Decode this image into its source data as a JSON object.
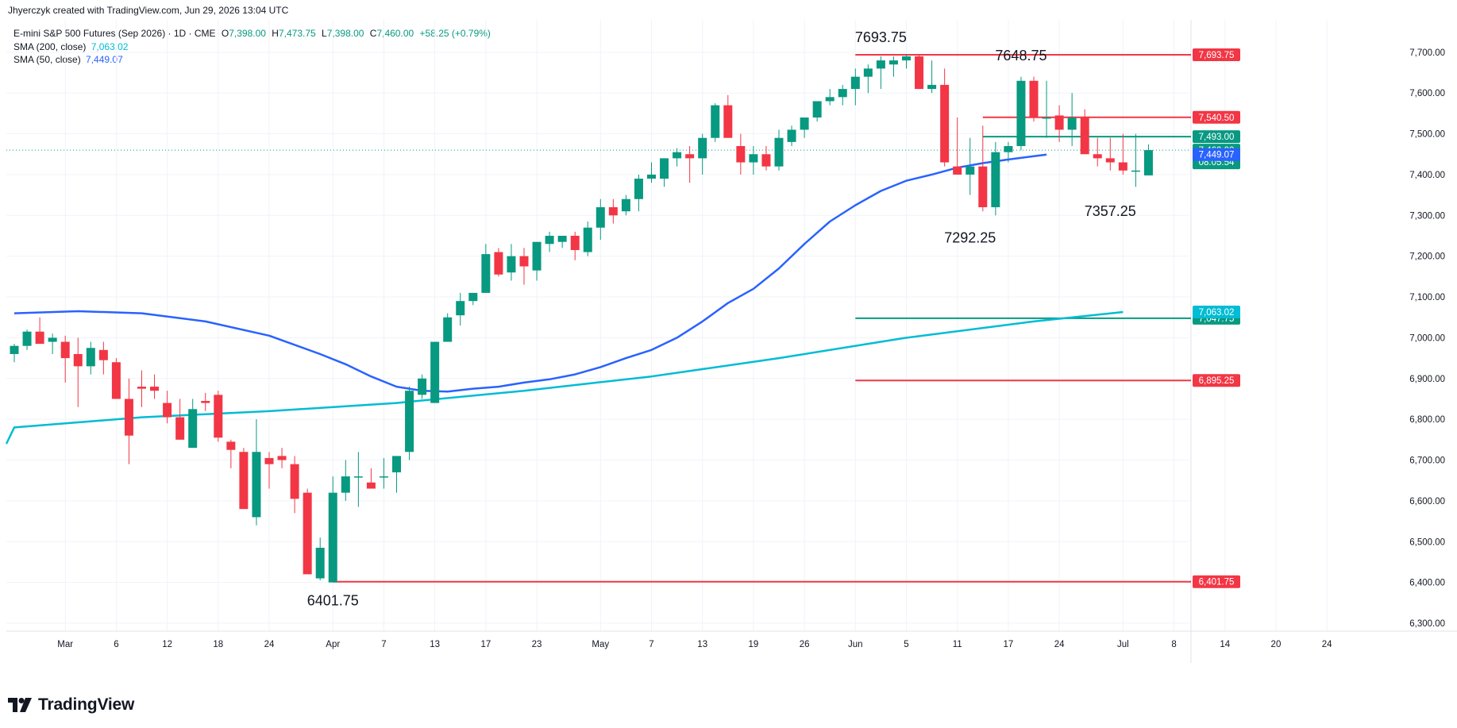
{
  "credit": "Jhyerczyk created with TradingView.com, Jun 29, 2026 13:04 UTC",
  "legend": {
    "symbol": "E-mini S&P 500 Futures (Sep 2026) · 1D · CME",
    "o_label": "O",
    "o_value": "7,398.00",
    "h_label": "H",
    "h_value": "7,473.75",
    "l_label": "L",
    "l_value": "7,398.00",
    "c_label": "C",
    "c_value": "7,460.00",
    "change": "+58.25 (+0.79%)",
    "sma200_label": "SMA (200, close)",
    "sma200_value": "7,063.02",
    "sma50_label": "SMA (50, close)",
    "sma50_value": "7,449.07"
  },
  "logo_text": "TradingView",
  "colors": {
    "up": "#089981",
    "down": "#f23645",
    "sma50": "#2962ff",
    "sma200": "#00bcd4",
    "grid": "#f0f3fa"
  },
  "chart_data": {
    "type": "candlestick",
    "ylim": [
      6300,
      7760
    ],
    "y_ticks": [
      6300,
      6400,
      6500,
      6600,
      6700,
      6800,
      6900,
      7000,
      7100,
      7200,
      7300,
      7400,
      7500,
      7600,
      7700
    ],
    "y_tick_labels": [
      "6,300.00",
      "6,400.00",
      "6,500.00",
      "6,600.00",
      "6,700.00",
      "6,800.00",
      "6,900.00",
      "7,000.00",
      "7,100.00",
      "7,200.00",
      "7,300.00",
      "7,400.00",
      "7,500.00",
      "7,600.00",
      "7,700.00"
    ],
    "x_ticks": [
      {
        "i": 4,
        "label": "Mar"
      },
      {
        "i": 8,
        "label": "6"
      },
      {
        "i": 12,
        "label": "12"
      },
      {
        "i": 16,
        "label": "18"
      },
      {
        "i": 20,
        "label": "24"
      },
      {
        "i": 25,
        "label": "Apr"
      },
      {
        "i": 29,
        "label": "7"
      },
      {
        "i": 33,
        "label": "13"
      },
      {
        "i": 37,
        "label": "17"
      },
      {
        "i": 41,
        "label": "23"
      },
      {
        "i": 46,
        "label": "May"
      },
      {
        "i": 50,
        "label": "7"
      },
      {
        "i": 54,
        "label": "13"
      },
      {
        "i": 58,
        "label": "19"
      },
      {
        "i": 62,
        "label": "26"
      },
      {
        "i": 66,
        "label": "Jun"
      },
      {
        "i": 70,
        "label": "5"
      },
      {
        "i": 74,
        "label": "11"
      },
      {
        "i": 78,
        "label": "17"
      },
      {
        "i": 82,
        "label": "24"
      },
      {
        "i": 87,
        "label": "Jul"
      },
      {
        "i": 91,
        "label": "8"
      },
      {
        "i": 95,
        "label": "14"
      },
      {
        "i": 99,
        "label": "20"
      },
      {
        "i": 103,
        "label": "24"
      }
    ],
    "candles": [
      [
        6960,
        6985,
        6940,
        6980
      ],
      [
        6980,
        7020,
        6970,
        7015
      ],
      [
        7015,
        7050,
        6990,
        6985
      ],
      [
        6990,
        7010,
        6960,
        7000
      ],
      [
        6990,
        7005,
        6890,
        6950
      ],
      [
        6960,
        7000,
        6830,
        6930
      ],
      [
        6930,
        6990,
        6910,
        6975
      ],
      [
        6970,
        6990,
        6910,
        6945
      ],
      [
        6940,
        6950,
        6850,
        6850
      ],
      [
        6850,
        6900,
        6690,
        6760
      ],
      [
        6880,
        6920,
        6830,
        6875
      ],
      [
        6880,
        6910,
        6850,
        6870
      ],
      [
        6840,
        6870,
        6790,
        6805
      ],
      [
        6805,
        6850,
        6750,
        6750
      ],
      [
        6730,
        6850,
        6730,
        6825
      ],
      [
        6845,
        6865,
        6820,
        6840
      ],
      [
        6860,
        6870,
        6745,
        6755
      ],
      [
        6745,
        6750,
        6680,
        6725
      ],
      [
        6720,
        6730,
        6580,
        6580
      ],
      [
        6560,
        6800,
        6540,
        6720
      ],
      [
        6705,
        6720,
        6630,
        6690
      ],
      [
        6710,
        6730,
        6680,
        6700
      ],
      [
        6690,
        6710,
        6570,
        6605
      ],
      [
        6620,
        6630,
        6420,
        6420
      ],
      [
        6410,
        6510,
        6405,
        6485
      ],
      [
        6400,
        6660,
        6400,
        6620
      ],
      [
        6620,
        6700,
        6600,
        6660
      ],
      [
        6660,
        6720,
        6585,
        6660
      ],
      [
        6645,
        6680,
        6630,
        6630
      ],
      [
        6660,
        6705,
        6630,
        6660
      ],
      [
        6670,
        6710,
        6620,
        6710
      ],
      [
        6720,
        6880,
        6700,
        6870
      ],
      [
        6860,
        6910,
        6850,
        6900
      ],
      [
        6840,
        6990,
        6840,
        6990
      ],
      [
        6990,
        7060,
        6990,
        7050
      ],
      [
        7055,
        7110,
        7030,
        7090
      ],
      [
        7090,
        7110,
        7080,
        7110
      ],
      [
        7110,
        7230,
        7110,
        7205
      ],
      [
        7210,
        7220,
        7150,
        7155
      ],
      [
        7160,
        7230,
        7140,
        7200
      ],
      [
        7200,
        7220,
        7130,
        7175
      ],
      [
        7165,
        7230,
        7140,
        7235
      ],
      [
        7230,
        7260,
        7210,
        7250
      ],
      [
        7235,
        7250,
        7220,
        7250
      ],
      [
        7250,
        7260,
        7190,
        7215
      ],
      [
        7210,
        7285,
        7200,
        7270
      ],
      [
        7270,
        7340,
        7240,
        7320
      ],
      [
        7320,
        7340,
        7280,
        7300
      ],
      [
        7310,
        7350,
        7300,
        7340
      ],
      [
        7340,
        7400,
        7310,
        7390
      ],
      [
        7390,
        7430,
        7380,
        7400
      ],
      [
        7390,
        7440,
        7370,
        7440
      ],
      [
        7440,
        7465,
        7420,
        7455
      ],
      [
        7450,
        7470,
        7380,
        7440
      ],
      [
        7440,
        7500,
        7400,
        7490
      ],
      [
        7490,
        7575,
        7480,
        7570
      ],
      [
        7570,
        7595,
        7490,
        7490
      ],
      [
        7470,
        7500,
        7400,
        7430
      ],
      [
        7430,
        7470,
        7400,
        7450
      ],
      [
        7450,
        7470,
        7410,
        7420
      ],
      [
        7420,
        7510,
        7410,
        7490
      ],
      [
        7480,
        7520,
        7470,
        7510
      ],
      [
        7510,
        7540,
        7490,
        7540
      ],
      [
        7540,
        7580,
        7530,
        7580
      ],
      [
        7580,
        7610,
        7570,
        7590
      ],
      [
        7590,
        7620,
        7570,
        7610
      ],
      [
        7610,
        7660,
        7570,
        7640
      ],
      [
        7640,
        7670,
        7600,
        7660
      ],
      [
        7660,
        7690,
        7610,
        7680
      ],
      [
        7670,
        7690,
        7640,
        7680
      ],
      [
        7680,
        7695,
        7660,
        7690
      ],
      [
        7690,
        7695,
        7610,
        7610
      ],
      [
        7610,
        7680,
        7600,
        7620
      ],
      [
        7620,
        7660,
        7420,
        7430
      ],
      [
        7420,
        7540,
        7400,
        7400
      ],
      [
        7400,
        7490,
        7350,
        7420
      ],
      [
        7420,
        7520,
        7310,
        7320
      ],
      [
        7320,
        7480,
        7300,
        7455
      ],
      [
        7455,
        7480,
        7430,
        7470
      ],
      [
        7470,
        7640,
        7460,
        7630
      ],
      [
        7630,
        7640,
        7530,
        7540
      ],
      [
        7540,
        7630,
        7490,
        7540
      ],
      [
        7545,
        7570,
        7480,
        7510
      ],
      [
        7510,
        7600,
        7470,
        7540
      ],
      [
        7540,
        7560,
        7450,
        7450
      ],
      [
        7450,
        7490,
        7420,
        7440
      ],
      [
        7440,
        7490,
        7410,
        7430
      ],
      [
        7430,
        7500,
        7400,
        7410
      ],
      [
        7410,
        7500,
        7370,
        7410
      ],
      [
        7398,
        7474,
        7398,
        7460
      ]
    ],
    "candle_x_indices_start": 0,
    "sma50": [
      [
        0,
        7060
      ],
      [
        5,
        7065
      ],
      [
        10,
        7060
      ],
      [
        15,
        7040
      ],
      [
        20,
        7005
      ],
      [
        24,
        6960
      ],
      [
        26,
        6935
      ],
      [
        28,
        6905
      ],
      [
        30,
        6880
      ],
      [
        32,
        6870
      ],
      [
        34,
        6868
      ],
      [
        36,
        6875
      ],
      [
        38,
        6880
      ],
      [
        40,
        6890
      ],
      [
        42,
        6898
      ],
      [
        44,
        6910
      ],
      [
        46,
        6928
      ],
      [
        48,
        6950
      ],
      [
        50,
        6970
      ],
      [
        52,
        7000
      ],
      [
        54,
        7040
      ],
      [
        56,
        7085
      ],
      [
        58,
        7120
      ],
      [
        60,
        7170
      ],
      [
        62,
        7230
      ],
      [
        64,
        7285
      ],
      [
        66,
        7325
      ],
      [
        68,
        7360
      ],
      [
        70,
        7385
      ],
      [
        72,
        7400
      ],
      [
        74,
        7417
      ],
      [
        76,
        7428
      ],
      [
        78,
        7437
      ],
      [
        80,
        7445
      ],
      [
        81,
        7449
      ]
    ],
    "sma200": [
      [
        -8,
        6740
      ],
      [
        0,
        6780
      ],
      [
        10,
        6805
      ],
      [
        20,
        6820
      ],
      [
        30,
        6840
      ],
      [
        40,
        6870
      ],
      [
        50,
        6905
      ],
      [
        60,
        6950
      ],
      [
        70,
        7000
      ],
      [
        80,
        7040
      ],
      [
        87,
        7063
      ]
    ],
    "sma50_end_value": 7449.07,
    "sma200_end_value": 7063.02,
    "horizontal_levels": [
      {
        "value": 7693.75,
        "color": "#f23645",
        "label": "7,693.75",
        "from": 66
      },
      {
        "value": 7540.5,
        "color": "#f23645",
        "label": "7,540.50",
        "from": 76
      },
      {
        "value": 7493.0,
        "color": "#089981",
        "label": "7,493.00",
        "from": 76
      },
      {
        "value": 7047.75,
        "color": "#089981",
        "label": "7,047.75",
        "from": 66
      },
      {
        "value": 6895.25,
        "color": "#f23645",
        "label": "6,895.25",
        "from": 66
      },
      {
        "value": 6401.75,
        "color": "#f23645",
        "label": "6,401.75",
        "from": 25
      }
    ],
    "last_price": {
      "value": 7460.0,
      "label": "7,460.00",
      "countdown": "08:05:54"
    },
    "sma_badges": [
      {
        "value": 7449.07,
        "label": "7,449.07",
        "color": "#2962ff"
      },
      {
        "value": 7063.02,
        "label": "7,063.02",
        "color": "#00bcd4"
      }
    ],
    "annotations": [
      {
        "text": "7693.75",
        "i": 68,
        "value": 7693.75,
        "pos": "above"
      },
      {
        "text": "7648.75",
        "i": 79,
        "value": 7648.75,
        "pos": "above"
      },
      {
        "text": "7292.25",
        "i": 75,
        "value": 7292.25,
        "pos": "below"
      },
      {
        "text": "7357.25",
        "i": 86,
        "value": 7357.25,
        "pos": "below"
      },
      {
        "text": "6401.75",
        "i": 25,
        "value": 6401.75,
        "pos": "below"
      }
    ]
  }
}
